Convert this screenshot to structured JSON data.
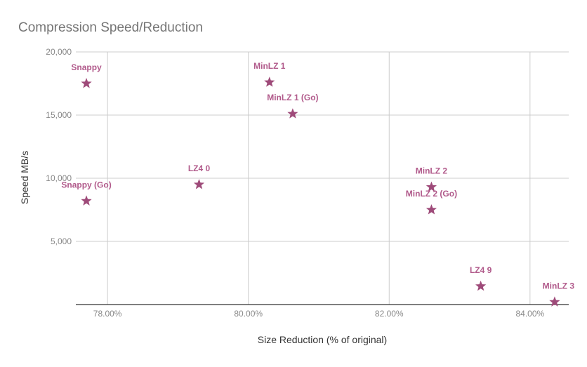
{
  "chart_data": {
    "type": "scatter",
    "title": "Compression Speed/Reduction",
    "xlabel": "Size Reduction (% of original)",
    "ylabel": "Speed MB/s",
    "xlim": [
      77.55,
      84.55
    ],
    "ylim": [
      0,
      20000
    ],
    "x_ticks": [
      {
        "value": 78,
        "label": "78.00%"
      },
      {
        "value": 80,
        "label": "80.00%"
      },
      {
        "value": 82,
        "label": "82.00%"
      },
      {
        "value": 84,
        "label": "84.00%"
      }
    ],
    "y_ticks": [
      {
        "value": 5000,
        "label": "5,000"
      },
      {
        "value": 10000,
        "label": "10,000"
      },
      {
        "value": 15000,
        "label": "15,000"
      },
      {
        "value": 20000,
        "label": "20,000"
      }
    ],
    "grid": true,
    "marker": "star",
    "colors": {
      "point": "#9e4a79",
      "label": "#b15a8b",
      "title": "#757575",
      "axis_text": "#444444",
      "tick_text": "#888888",
      "grid": "#cccccc",
      "axis": "#333333"
    },
    "points": [
      {
        "name": "Snappy",
        "x": 77.7,
        "y": 17500
      },
      {
        "name": "Snappy (Go)",
        "x": 77.7,
        "y": 8200
      },
      {
        "name": "LZ4 0",
        "x": 79.3,
        "y": 9500
      },
      {
        "name": "MinLZ 1",
        "x": 80.3,
        "y": 17600
      },
      {
        "name": "MinLZ 1 (Go)",
        "x": 80.63,
        "y": 15100
      },
      {
        "name": "MinLZ 2",
        "x": 82.6,
        "y": 9300
      },
      {
        "name": "MinLZ 2 (Go)",
        "x": 82.6,
        "y": 7500
      },
      {
        "name": "LZ4 9",
        "x": 83.3,
        "y": 1450
      },
      {
        "name": "MinLZ 3",
        "x": 84.35,
        "y": 200
      }
    ]
  }
}
